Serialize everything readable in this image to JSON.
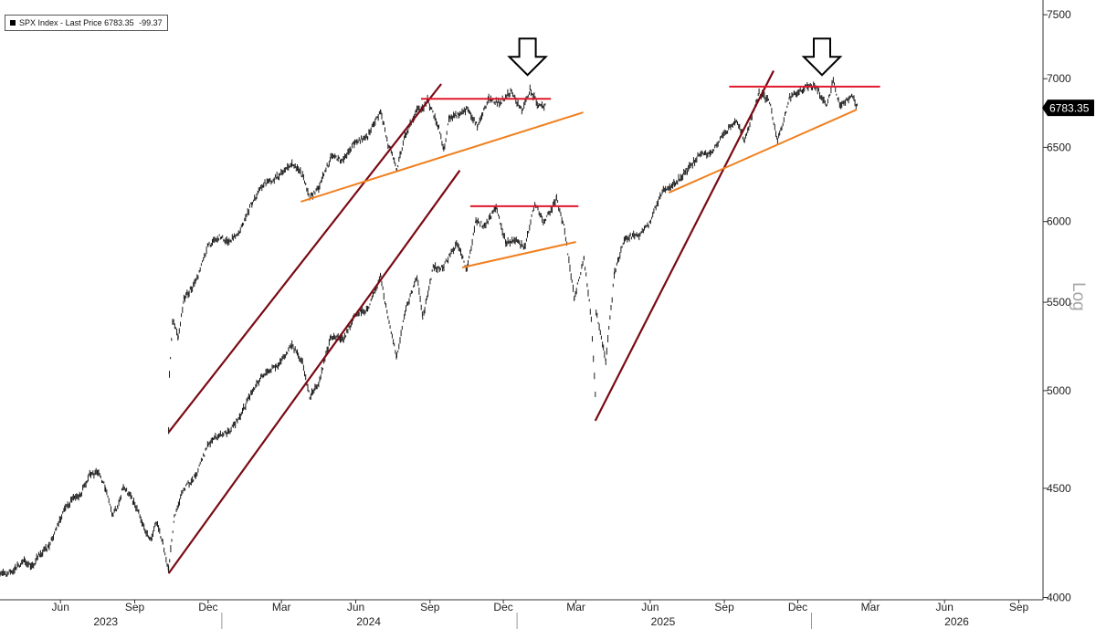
{
  "legend": {
    "ticker": "SPX Index",
    "separator": "-",
    "label": "Last Price",
    "value": "6783.35",
    "change": "-99.37"
  },
  "colors": {
    "price": "#1a1a1a",
    "resistance": "#e0182b",
    "support": "#f07f1f",
    "channel": "#7a0a14",
    "last_box": "#000000"
  },
  "chart_data": {
    "type": "line",
    "title": "",
    "xlabel": "",
    "ylabel": "",
    "yscale": "log",
    "scale_label": "Log",
    "grid": false,
    "legend_position": "top-left",
    "last_price_label": "6783.35",
    "y_ticks": [
      4000,
      4500,
      5000,
      5500,
      6000,
      6500,
      7000,
      7500
    ],
    "y_tick_labels": [
      "4000",
      "4500",
      "5000",
      "5500",
      "6000",
      "6500",
      "7000",
      "7500"
    ],
    "x_ticks": [
      {
        "label": "Jun",
        "date": "2023-06-15"
      },
      {
        "label": "Sep",
        "date": "2023-09-15"
      },
      {
        "label": "Dec",
        "date": "2023-12-15"
      },
      {
        "label": "Mar",
        "date": "2024-03-15"
      },
      {
        "label": "Jun",
        "date": "2024-06-15"
      },
      {
        "label": "Sep",
        "date": "2024-09-15"
      },
      {
        "label": "Dec",
        "date": "2024-12-15"
      },
      {
        "label": "Mar",
        "date": "2025-03-15"
      },
      {
        "label": "Jun",
        "date": "2025-06-15"
      },
      {
        "label": "Sep",
        "date": "2025-09-15"
      },
      {
        "label": "Dec",
        "date": "2025-12-15"
      },
      {
        "label": "Mar",
        "date": "2026-03-15"
      },
      {
        "label": "Jun",
        "date": "2026-06-15"
      },
      {
        "label": "Sep",
        "date": "2026-09-15"
      }
    ],
    "years": [
      {
        "label": "2023",
        "center": "2023-08-10"
      },
      {
        "label": "2024",
        "center": "2024-07-01"
      },
      {
        "label": "2025",
        "center": "2025-07-01"
      },
      {
        "label": "2026",
        "center": "2026-06-30"
      }
    ],
    "year_dividers": [
      "2024-01-01",
      "2025-01-01",
      "2026-01-01"
    ],
    "x_range": [
      "2023-04-01",
      "2026-10-15"
    ],
    "y_range": [
      3990,
      7620
    ],
    "series": [
      {
        "points": [
          [
            "2023-04-01",
            4110
          ],
          [
            "2023-04-10",
            4100
          ],
          [
            "2023-04-20",
            4130
          ],
          [
            "2023-05-01",
            4160
          ],
          [
            "2023-05-10",
            4130
          ],
          [
            "2023-05-20",
            4190
          ],
          [
            "2023-06-01",
            4230
          ],
          [
            "2023-06-10",
            4310
          ],
          [
            "2023-06-20",
            4400
          ],
          [
            "2023-07-01",
            4450
          ],
          [
            "2023-07-10",
            4470
          ],
          [
            "2023-07-20",
            4560
          ],
          [
            "2023-07-31",
            4580
          ],
          [
            "2023-08-10",
            4500
          ],
          [
            "2023-08-18",
            4370
          ],
          [
            "2023-08-25",
            4410
          ],
          [
            "2023-09-01",
            4510
          ],
          [
            "2023-09-10",
            4460
          ],
          [
            "2023-09-20",
            4380
          ],
          [
            "2023-09-28",
            4290
          ],
          [
            "2023-10-05",
            4260
          ],
          [
            "2023-10-12",
            4340
          ],
          [
            "2023-10-20",
            4240
          ],
          [
            "2023-10-27",
            4120
          ],
          [
            "2023-11-03",
            4360
          ],
          [
            "2023-11-15",
            4500
          ],
          [
            "2023-11-30",
            4560
          ],
          [
            "2023-12-15",
            4720
          ],
          [
            "2023-12-29",
            4770
          ],
          [
            "2024-01-10",
            4780
          ],
          [
            "2024-01-24",
            4870
          ],
          [
            "2024-02-08",
            5000
          ],
          [
            "2024-02-22",
            5090
          ],
          [
            "2024-03-08",
            5130
          ],
          [
            "2024-03-28",
            5250
          ],
          [
            "2024-04-10",
            5160
          ],
          [
            "2024-04-19",
            4970
          ],
          [
            "2024-04-30",
            5040
          ],
          [
            "2024-05-15",
            5300
          ],
          [
            "2024-05-31",
            5280
          ],
          [
            "2024-06-14",
            5430
          ],
          [
            "2024-06-30",
            5460
          ],
          [
            "2024-07-16",
            5660
          ],
          [
            "2024-07-25",
            5400
          ],
          [
            "2024-08-05",
            5190
          ],
          [
            "2024-08-15",
            5450
          ],
          [
            "2024-08-30",
            5650
          ],
          [
            "2024-09-06",
            5400
          ],
          [
            "2024-09-19",
            5710
          ],
          [
            "2024-10-01",
            5710
          ],
          [
            "2024-10-18",
            5860
          ],
          [
            "2024-10-31",
            5700
          ],
          [
            "2024-11-11",
            6000
          ],
          [
            "2024-11-22",
            5970
          ],
          [
            "2024-12-06",
            6090
          ],
          [
            "2024-12-18",
            5870
          ],
          [
            "2024-12-31",
            5880
          ],
          [
            "2025-01-10",
            5830
          ],
          [
            "2025-01-23",
            6120
          ],
          [
            "2025-02-03",
            5990
          ],
          [
            "2025-02-19",
            6145
          ],
          [
            "2025-03-01",
            5950
          ],
          [
            "2025-03-13",
            5520
          ],
          [
            "2025-03-25",
            5770
          ],
          [
            "2025-04-03",
            5400
          ],
          [
            "2025-04-08",
            4980
          ],
          [
            "2025-04-09",
            5450
          ],
          [
            "2025-04-21",
            5160
          ],
          [
            "2025-05-02",
            5680
          ],
          [
            "2025-05-15",
            5900
          ],
          [
            "2025-05-31",
            5910
          ],
          [
            "2025-06-13",
            5980
          ],
          [
            "2025-06-30",
            6200
          ],
          [
            "2025-07-15",
            6250
          ],
          [
            "2025-07-31",
            6340
          ],
          [
            "2025-08-15",
            6450
          ],
          [
            "2025-08-29",
            6460
          ],
          [
            "2025-09-15",
            6600
          ],
          [
            "2025-09-30",
            6690
          ],
          [
            "2025-10-10",
            6550
          ],
          [
            "2025-10-28",
            6890
          ],
          [
            "2025-11-10",
            6830
          ],
          [
            "2025-11-20",
            6540
          ],
          [
            "2025-12-05",
            6860
          ],
          [
            "2025-12-24",
            6930
          ],
          [
            "2026-01-06",
            6940
          ],
          [
            "2026-01-20",
            6800
          ],
          [
            "2026-01-28",
            6980
          ],
          [
            "2026-02-05",
            6800
          ],
          [
            "2026-02-12",
            6830
          ],
          [
            "2026-02-20",
            6880
          ],
          [
            "2026-02-27",
            6783
          ]
        ]
      },
      {
        "points": [
          [
            "2023-10-27",
            4780
          ],
          [
            "2023-10-28",
            5080
          ],
          [
            "2023-11-01",
            5400
          ],
          [
            "2023-11-08",
            5300
          ],
          [
            "2023-11-15",
            5520
          ],
          [
            "2023-11-30",
            5620
          ],
          [
            "2023-12-15",
            5850
          ],
          [
            "2023-12-29",
            5900
          ],
          [
            "2024-01-10",
            5870
          ],
          [
            "2024-01-24",
            5950
          ],
          [
            "2024-02-08",
            6130
          ],
          [
            "2024-02-22",
            6250
          ],
          [
            "2024-03-08",
            6290
          ],
          [
            "2024-03-28",
            6380
          ],
          [
            "2024-04-10",
            6310
          ],
          [
            "2024-04-19",
            6150
          ],
          [
            "2024-04-30",
            6220
          ],
          [
            "2024-05-15",
            6430
          ],
          [
            "2024-05-31",
            6410
          ],
          [
            "2024-06-14",
            6540
          ],
          [
            "2024-06-30",
            6580
          ],
          [
            "2024-07-16",
            6760
          ],
          [
            "2024-07-25",
            6520
          ],
          [
            "2024-08-05",
            6350
          ],
          [
            "2024-08-15",
            6580
          ],
          [
            "2024-08-30",
            6770
          ],
          [
            "2024-09-06",
            6780
          ],
          [
            "2024-09-12",
            6840
          ],
          [
            "2024-09-26",
            6640
          ],
          [
            "2024-10-02",
            6480
          ],
          [
            "2024-10-09",
            6710
          ],
          [
            "2024-10-21",
            6740
          ],
          [
            "2024-11-01",
            6780
          ],
          [
            "2024-11-13",
            6650
          ],
          [
            "2024-11-27",
            6850
          ],
          [
            "2024-12-10",
            6820
          ],
          [
            "2024-12-24",
            6900
          ],
          [
            "2025-01-07",
            6760
          ],
          [
            "2025-01-17",
            6920
          ],
          [
            "2025-01-28",
            6790
          ],
          [
            "2025-02-05",
            6800
          ]
        ]
      }
    ],
    "trendlines": [
      {
        "kind": "channel",
        "from": [
          "2023-10-27",
          4105
        ],
        "to": [
          "2024-10-22",
          6340
        ]
      },
      {
        "kind": "channel",
        "from": [
          "2023-10-27",
          4780
        ],
        "to": [
          "2024-09-29",
          6960
        ]
      },
      {
        "kind": "channel",
        "from": [
          "2025-04-08",
          4840
        ],
        "to": [
          "2025-11-15",
          7060
        ]
      },
      {
        "kind": "resistance",
        "from": [
          "2024-09-04",
          6850
        ],
        "to": [
          "2025-02-12",
          6850
        ]
      },
      {
        "kind": "resistance",
        "from": [
          "2024-11-04",
          6100
        ],
        "to": [
          "2025-03-18",
          6100
        ]
      },
      {
        "kind": "resistance",
        "from": [
          "2025-09-21",
          6940
        ],
        "to": [
          "2026-03-27",
          6940
        ]
      },
      {
        "kind": "support",
        "from": [
          "2024-04-08",
          6130
        ],
        "to": [
          "2025-03-24",
          6750
        ]
      },
      {
        "kind": "support",
        "from": [
          "2024-10-25",
          5710
        ],
        "to": [
          "2025-03-15",
          5870
        ]
      },
      {
        "kind": "support",
        "from": [
          "2025-07-08",
          6190
        ],
        "to": [
          "2026-02-26",
          6770
        ]
      }
    ],
    "annotations": [
      {
        "kind": "down-arrow",
        "date": "2025-01-14",
        "value": 7310
      },
      {
        "kind": "down-arrow",
        "date": "2026-01-14",
        "value": 7310
      }
    ]
  }
}
